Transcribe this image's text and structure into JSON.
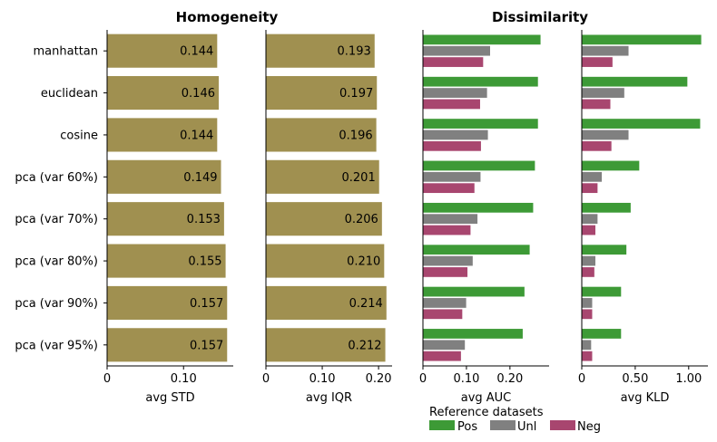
{
  "suptitles": {
    "left": "Homogeneity",
    "right": "Dissimilarity"
  },
  "legend": {
    "title": "Reference datasets",
    "entries": [
      {
        "name": "Pos",
        "color": "#3d9a36"
      },
      {
        "name": "Unl",
        "color": "#808080"
      },
      {
        "name": "Neg",
        "color": "#a8466f"
      }
    ]
  },
  "chart_data": [
    {
      "type": "bar",
      "orientation": "horizontal",
      "categories": [
        "manhattan",
        "euclidean",
        "cosine",
        "pca (var 60%)",
        "pca (var 70%)",
        "pca (var 80%)",
        "pca (var 90%)",
        "pca (var 95%)"
      ],
      "values": [
        0.144,
        0.146,
        0.144,
        0.149,
        0.153,
        0.155,
        0.157,
        0.157
      ],
      "data_labels": [
        "0.144",
        "0.146",
        "0.144",
        "0.149",
        "0.153",
        "0.155",
        "0.157",
        "0.157"
      ],
      "color": "#a09050",
      "xlabel": "avg STD",
      "xlim": [
        0,
        0.165
      ],
      "xticks": [
        0,
        0.1
      ],
      "xtick_labels": [
        "0",
        "0.10"
      ]
    },
    {
      "type": "bar",
      "orientation": "horizontal",
      "categories": [
        "manhattan",
        "euclidean",
        "cosine",
        "pca (var 60%)",
        "pca (var 70%)",
        "pca (var 80%)",
        "pca (var 90%)",
        "pca (var 95%)"
      ],
      "values": [
        0.193,
        0.197,
        0.196,
        0.201,
        0.206,
        0.21,
        0.214,
        0.212
      ],
      "data_labels": [
        "0.193",
        "0.197",
        "0.196",
        "0.201",
        "0.206",
        "0.210",
        "0.214",
        "0.212"
      ],
      "color": "#a09050",
      "xlabel": "avg IQR",
      "xlim": [
        0,
        0.224
      ],
      "xticks": [
        0,
        0.1,
        0.2
      ],
      "xtick_labels": [
        "0",
        "0.10",
        "0.20"
      ]
    },
    {
      "type": "bar",
      "orientation": "horizontal",
      "categories": [
        "manhattan",
        "euclidean",
        "cosine",
        "pca (var 60%)",
        "pca (var 70%)",
        "pca (var 80%)",
        "pca (var 90%)",
        "pca (var 95%)"
      ],
      "series": [
        {
          "name": "Pos",
          "color": "#3d9a36",
          "values": [
            0.271,
            0.265,
            0.265,
            0.258,
            0.254,
            0.246,
            0.234,
            0.23
          ]
        },
        {
          "name": "Unl",
          "color": "#808080",
          "values": [
            0.155,
            0.148,
            0.15,
            0.133,
            0.126,
            0.115,
            0.1,
            0.097
          ]
        },
        {
          "name": "Neg",
          "color": "#a8466f",
          "values": [
            0.139,
            0.132,
            0.134,
            0.119,
            0.11,
            0.103,
            0.091,
            0.088
          ]
        }
      ],
      "xlabel": "avg AUC",
      "xlim": [
        0,
        0.29
      ],
      "xticks": [
        0,
        0.1,
        0.2
      ],
      "xtick_labels": [
        "0",
        "0.10",
        "0.20"
      ]
    },
    {
      "type": "bar",
      "orientation": "horizontal",
      "categories": [
        "manhattan",
        "euclidean",
        "cosine",
        "pca (var 60%)",
        "pca (var 70%)",
        "pca (var 80%)",
        "pca (var 90%)",
        "pca (var 95%)"
      ],
      "series": [
        {
          "name": "Pos",
          "color": "#3d9a36",
          "values": [
            1.12,
            0.99,
            1.11,
            0.54,
            0.46,
            0.42,
            0.37,
            0.37
          ]
        },
        {
          "name": "Unl",
          "color": "#808080",
          "values": [
            0.44,
            0.4,
            0.44,
            0.19,
            0.15,
            0.13,
            0.1,
            0.09
          ]
        },
        {
          "name": "Neg",
          "color": "#a8466f",
          "values": [
            0.29,
            0.27,
            0.28,
            0.15,
            0.13,
            0.12,
            0.1,
            0.1
          ]
        }
      ],
      "xlabel": "avg KLD",
      "xlim": [
        0,
        1.18
      ],
      "xticks": [
        0,
        0.5,
        1.0
      ],
      "xtick_labels": [
        "0",
        "0.50",
        "1.00"
      ]
    }
  ]
}
